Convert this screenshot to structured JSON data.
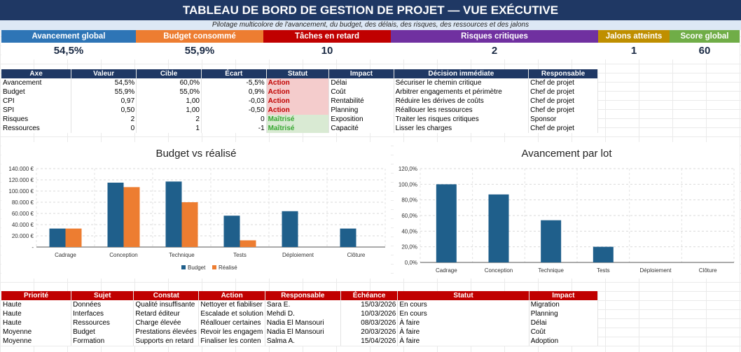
{
  "header": {
    "title": "TABLEAU DE BORD DE GESTION DE PROJET — VUE EXÉCUTIVE",
    "subtitle": "Pilotage multicolore de l'avancement, du budget, des délais, des risques, des ressources et des jalons"
  },
  "kpis": [
    {
      "label": "Avancement global",
      "value": "54,5%",
      "color": "#2e75b6"
    },
    {
      "label": "Budget consommé",
      "value": "55,9%",
      "color": "#ed7d31"
    },
    {
      "label": "Tâches en retard",
      "value": "10",
      "color": "#c00000"
    },
    {
      "label": "Risques critiques",
      "value": "2",
      "color": "#7030a0"
    },
    {
      "label": "Jalons atteints",
      "value": "1",
      "color": "#bf8f00"
    },
    {
      "label": "Score global",
      "value": "60",
      "color": "#70ad47"
    }
  ],
  "axes_table": {
    "header_color": "#1f3864",
    "columns": [
      "Axe",
      "Valeur",
      "Cible",
      "Écart",
      "Statut",
      "Impact",
      "Décision immédiate",
      "Responsable"
    ],
    "rows": [
      [
        "Avancement",
        "54,5%",
        "60,0%",
        "-5,5%",
        "Action",
        "Délai",
        "Sécuriser le chemin critique",
        "Chef de projet"
      ],
      [
        "Budget",
        "55,9%",
        "55,0%",
        "0,9%",
        "Action",
        "Coût",
        "Arbitrer engagements et périmètre",
        "Chef de projet"
      ],
      [
        "CPI",
        "0,97",
        "1,00",
        "-0,03",
        "Action",
        "Rentabilité",
        "Réduire les dérives de coûts",
        "Chef de projet"
      ],
      [
        "SPI",
        "0,50",
        "1,00",
        "-0,50",
        "Action",
        "Planning",
        "Réallouer les ressources",
        "Chef de projet"
      ],
      [
        "Risques",
        "2",
        "2",
        "0",
        "Maîtrisé",
        "Exposition",
        "Traiter les risques critiques",
        "Sponsor"
      ],
      [
        "Ressources",
        "0",
        "1",
        "-1",
        "Maîtrisé",
        "Capacité",
        "Lisser les charges",
        "Chef de projet"
      ]
    ]
  },
  "chart_data": [
    {
      "type": "bar",
      "title": "Budget vs réalisé",
      "categories": [
        "Cadrage",
        "Conception",
        "Technique",
        "Tests",
        "Déploiement",
        "Clôture"
      ],
      "series": [
        {
          "name": "Budget",
          "values": [
            33000,
            115000,
            117000,
            56000,
            64000,
            33000
          ],
          "color": "#1f5f8b"
        },
        {
          "name": "Réalisé",
          "values": [
            33000,
            107000,
            80000,
            12000,
            0,
            0
          ],
          "color": "#ed7d31"
        }
      ],
      "ylim": [
        0,
        140000
      ],
      "yticks": [
        "-",
        "20.000 €",
        "40.000 €",
        "60.000 €",
        "80.000 €",
        "100.000 €",
        "120.000 €",
        "140.000 €"
      ],
      "grid": true,
      "legend": "bottom"
    },
    {
      "type": "bar",
      "title": "Avancement par lot",
      "categories": [
        "Cadrage",
        "Conception",
        "Technique",
        "Tests",
        "Déploiement",
        "Clôture"
      ],
      "series": [
        {
          "values": [
            100,
            87,
            54,
            20,
            0,
            0
          ],
          "color": "#1f5f8b"
        }
      ],
      "ylim": [
        0,
        120
      ],
      "yticks": [
        "0,0%",
        "20,0%",
        "40,0%",
        "60,0%",
        "80,0%",
        "100,0%",
        "120,0%"
      ],
      "grid": true,
      "legend": "none"
    }
  ],
  "actions_table": {
    "header_color": "#c00000",
    "columns": [
      "Priorité",
      "Sujet",
      "Constat",
      "Action",
      "Responsable",
      "Échéance",
      "Statut",
      "Impact"
    ],
    "rows": [
      [
        "Haute",
        "Données",
        "Qualité insuffisante",
        "Nettoyer et fiabiliser",
        "Sara E.",
        "15/03/2026",
        "En cours",
        "Migration"
      ],
      [
        "Haute",
        "Interfaces",
        "Retard éditeur",
        "Escalade et solution",
        "Mehdi D.",
        "10/03/2026",
        "En cours",
        "Planning"
      ],
      [
        "Haute",
        "Ressources",
        "Charge élevée",
        "Réallouer certaines",
        "Nadia El Mansouri",
        "08/03/2026",
        "À faire",
        "Délai"
      ],
      [
        "Moyenne",
        "Budget",
        "Prestations élevées",
        "Revoir les engagem",
        "Nadia El Mansouri",
        "20/03/2026",
        "À faire",
        "Coût"
      ],
      [
        "Moyenne",
        "Formation",
        "Supports en retard",
        "Finaliser les conten",
        "Salma A.",
        "15/04/2026",
        "À faire",
        "Adoption"
      ]
    ]
  }
}
